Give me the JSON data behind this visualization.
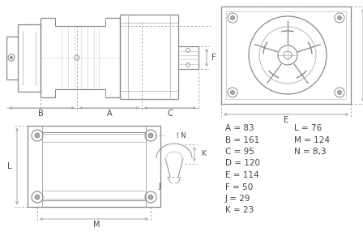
{
  "background_color": "#ffffff",
  "line_color": "#888888",
  "dim_line_color": "#999999",
  "text_color": "#444444",
  "measurements": {
    "A": "83",
    "B": "161",
    "C": "95",
    "D": "120",
    "E": "114",
    "F": "50",
    "J": "29",
    "K": "23",
    "L": "76",
    "M": "124",
    "N": "8,3"
  },
  "fig_width": 4.48,
  "fig_height": 2.86,
  "dpi": 100
}
